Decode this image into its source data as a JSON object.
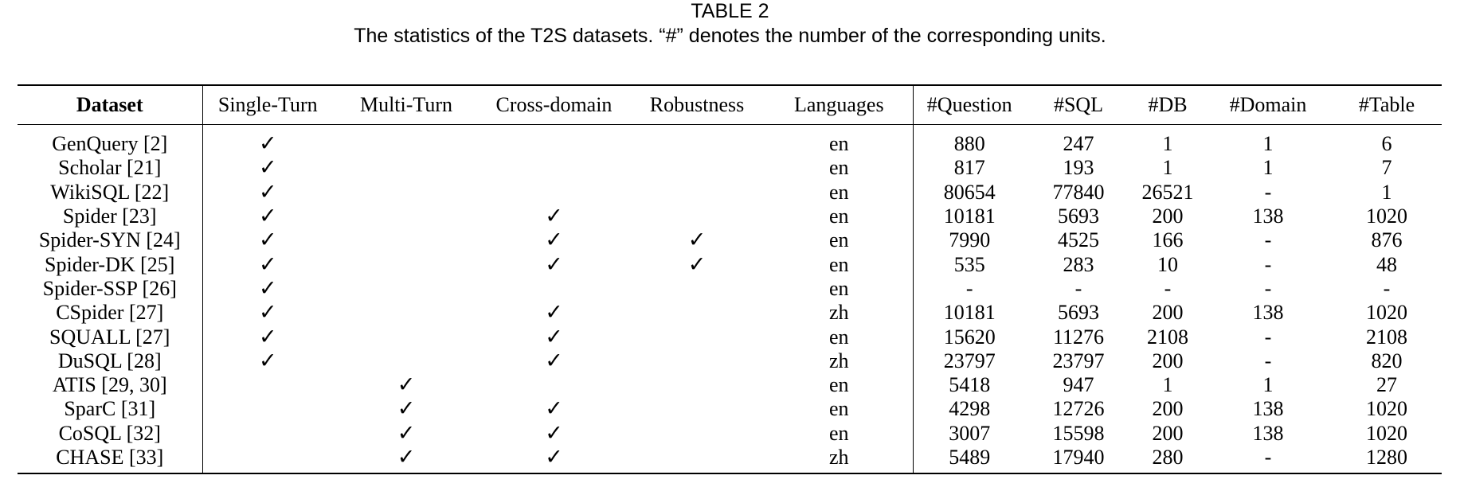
{
  "caption": {
    "label": "TABLE 2",
    "text": "The statistics of the T2S datasets. “#” denotes the number of the corresponding units."
  },
  "check_symbol": "✓",
  "headers": [
    "Dataset",
    "Single-Turn",
    "Multi-Turn",
    "Cross-domain",
    "Robustness",
    "Languages",
    "#Question",
    "#SQL",
    "#DB",
    "#Domain",
    "#Table"
  ],
  "rows": [
    {
      "dataset": "GenQuery [2]",
      "single_turn": "✓",
      "multi_turn": "",
      "cross_domain": "",
      "robustness": "",
      "language": "en",
      "question": "880",
      "sql": "247",
      "db": "1",
      "domain": "1",
      "table": "6"
    },
    {
      "dataset": "Scholar [21]",
      "single_turn": "✓",
      "multi_turn": "",
      "cross_domain": "",
      "robustness": "",
      "language": "en",
      "question": "817",
      "sql": "193",
      "db": "1",
      "domain": "1",
      "table": "7"
    },
    {
      "dataset": "WikiSQL [22]",
      "single_turn": "✓",
      "multi_turn": "",
      "cross_domain": "",
      "robustness": "",
      "language": "en",
      "question": "80654",
      "sql": "77840",
      "db": "26521",
      "domain": "-",
      "table": "1"
    },
    {
      "dataset": "Spider [23]",
      "single_turn": "✓",
      "multi_turn": "",
      "cross_domain": "✓",
      "robustness": "",
      "language": "en",
      "question": "10181",
      "sql": "5693",
      "db": "200",
      "domain": "138",
      "table": "1020"
    },
    {
      "dataset": "Spider-SYN [24]",
      "single_turn": "✓",
      "multi_turn": "",
      "cross_domain": "✓",
      "robustness": "✓",
      "language": "en",
      "question": "7990",
      "sql": "4525",
      "db": "166",
      "domain": "-",
      "table": "876"
    },
    {
      "dataset": "Spider-DK [25]",
      "single_turn": "✓",
      "multi_turn": "",
      "cross_domain": "✓",
      "robustness": "✓",
      "language": "en",
      "question": "535",
      "sql": "283",
      "db": "10",
      "domain": "-",
      "table": "48"
    },
    {
      "dataset": "Spider-SSP [26]",
      "single_turn": "✓",
      "multi_turn": "",
      "cross_domain": "",
      "robustness": "",
      "language": "en",
      "question": "-",
      "sql": "-",
      "db": "-",
      "domain": "-",
      "table": "-"
    },
    {
      "dataset": "CSpider [27]",
      "single_turn": "✓",
      "multi_turn": "",
      "cross_domain": "✓",
      "robustness": "",
      "language": "zh",
      "question": "10181",
      "sql": "5693",
      "db": "200",
      "domain": "138",
      "table": "1020"
    },
    {
      "dataset": "SQUALL [27]",
      "single_turn": "✓",
      "multi_turn": "",
      "cross_domain": "✓",
      "robustness": "",
      "language": "en",
      "question": "15620",
      "sql": "11276",
      "db": "2108",
      "domain": "-",
      "table": "2108"
    },
    {
      "dataset": "DuSQL [28]",
      "single_turn": "✓",
      "multi_turn": "",
      "cross_domain": "✓",
      "robustness": "",
      "language": "zh",
      "question": "23797",
      "sql": "23797",
      "db": "200",
      "domain": "-",
      "table": "820"
    },
    {
      "dataset": "ATIS [29, 30]",
      "single_turn": "",
      "multi_turn": "✓",
      "cross_domain": "",
      "robustness": "",
      "language": "en",
      "question": "5418",
      "sql": "947",
      "db": "1",
      "domain": "1",
      "table": "27"
    },
    {
      "dataset": "SparC [31]",
      "single_turn": "",
      "multi_turn": "✓",
      "cross_domain": "✓",
      "robustness": "",
      "language": "en",
      "question": "4298",
      "sql": "12726",
      "db": "200",
      "domain": "138",
      "table": "1020"
    },
    {
      "dataset": "CoSQL [32]",
      "single_turn": "",
      "multi_turn": "✓",
      "cross_domain": "✓",
      "robustness": "",
      "language": "en",
      "question": "3007",
      "sql": "15598",
      "db": "200",
      "domain": "138",
      "table": "1020"
    },
    {
      "dataset": "CHASE [33]",
      "single_turn": "",
      "multi_turn": "✓",
      "cross_domain": "✓",
      "robustness": "",
      "language": "zh",
      "question": "5489",
      "sql": "17940",
      "db": "280",
      "domain": "-",
      "table": "1280"
    }
  ]
}
